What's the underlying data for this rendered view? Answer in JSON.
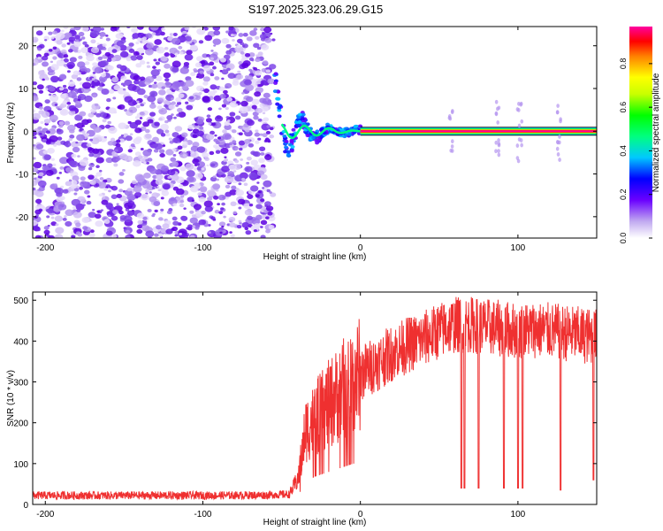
{
  "title": "S197.2025.323.06.29.G15",
  "chart_data": [
    {
      "type": "heatmap",
      "xlabel": "Height of straight line (km)",
      "ylabel": "Frequency (Hz)",
      "xlim": [
        -208,
        150
      ],
      "ylim": [
        -25,
        24.5
      ],
      "x_ticks": [
        -200,
        -100,
        0,
        100
      ],
      "y_ticks": [
        -20,
        -10,
        0,
        10,
        20
      ],
      "noise_region_x": [
        -208,
        -55
      ],
      "transition_region_x": [
        -55,
        0
      ],
      "tone_start_x": 0,
      "tone_frequency": 0,
      "sidebands_x": [
        57,
        87,
        101,
        126
      ],
      "colorbar": {
        "label": "Normalized spectral amplitude",
        "range": [
          0.0,
          0.97
        ],
        "ticks": [
          "0.0",
          "0.2",
          "0.4",
          "0.6",
          "0.8"
        ],
        "tick_values": [
          0.0,
          0.2,
          0.4,
          0.6,
          0.8
        ]
      }
    },
    {
      "type": "line",
      "xlabel": "Height of straight line (km)",
      "ylabel": "SNR (10 * v/v)",
      "xlim": [
        -208,
        150
      ],
      "ylim": [
        0,
        520
      ],
      "x_ticks": [
        -200,
        -100,
        0,
        100
      ],
      "y_ticks": [
        0,
        100,
        200,
        300,
        400,
        500
      ],
      "color": "#ef3030",
      "series": {
        "name": "SNR",
        "x": [
          -208,
          -180,
          -150,
          -120,
          -90,
          -60,
          -45,
          -40,
          -37,
          -35,
          -30,
          -25,
          -20,
          -15,
          -10,
          -5,
          0,
          10,
          20,
          30,
          40,
          50,
          60,
          70,
          80,
          90,
          100,
          110,
          120,
          130,
          140,
          150
        ],
        "mean": [
          22,
          22,
          22,
          22,
          22,
          23,
          25,
          60,
          120,
          180,
          205,
          225,
          245,
          265,
          285,
          305,
          320,
          345,
          370,
          390,
          405,
          425,
          440,
          440,
          435,
          430,
          425,
          428,
          425,
          420,
          415,
          410
        ]
      },
      "dropouts": [
        {
          "x": 64,
          "y": 40
        },
        {
          "x": 66,
          "y": 40
        },
        {
          "x": 75,
          "y": 40
        },
        {
          "x": 91,
          "y": 40
        },
        {
          "x": 100,
          "y": 40
        },
        {
          "x": 103,
          "y": 40
        },
        {
          "x": 127,
          "y": 35
        },
        {
          "x": 148,
          "y": 60
        }
      ]
    }
  ]
}
